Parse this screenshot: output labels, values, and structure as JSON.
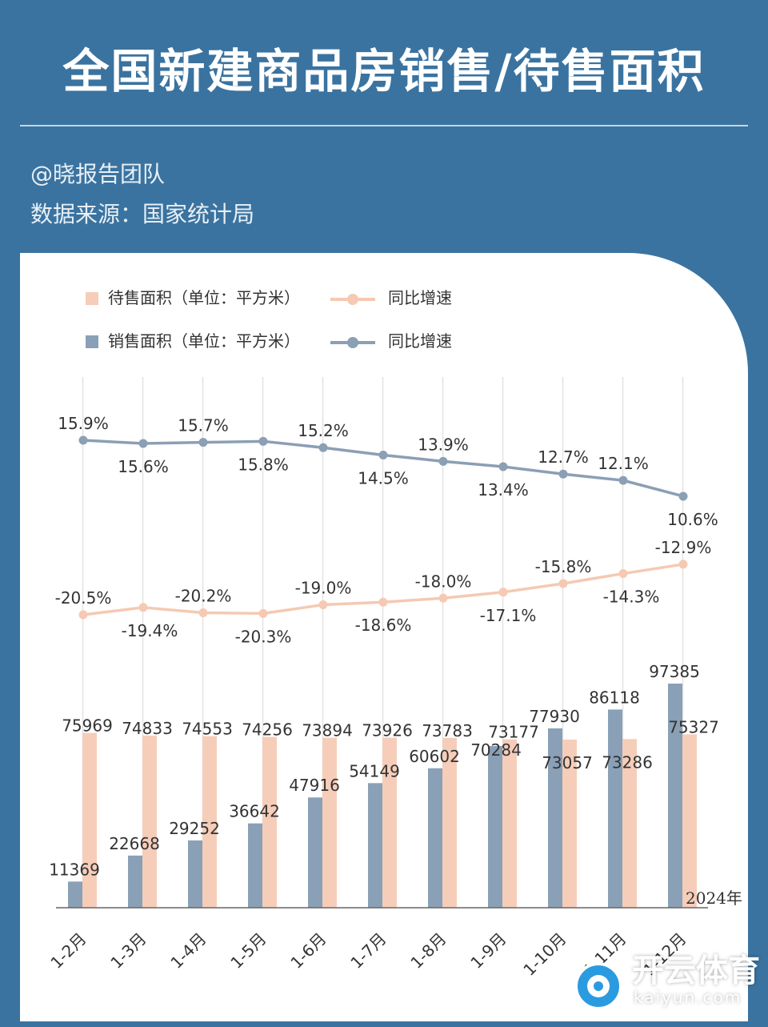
{
  "header": {
    "title": "全国新建商品房销售/待售面积",
    "author": "@晓报告团队",
    "source": "数据来源：国家统计局"
  },
  "watermark": {
    "main": "开云体育",
    "sub": "kaiyun.com"
  },
  "colors": {
    "pending": "#f6cdb9",
    "sales": "#8aa0b6",
    "pending_line": "#f5c9b3",
    "sales_line": "#8b9fb5",
    "background": "#3a73a0"
  },
  "chart_data": {
    "type": "bar+line",
    "year_label": "2024年",
    "categories": [
      "1-2月",
      "1-3月",
      "1-4月",
      "1-5月",
      "1-6月",
      "1-7月",
      "1-8月",
      "1-9月",
      "1-10月",
      "1-11月",
      "1-12月"
    ],
    "legend": [
      {
        "label": "待售面积（单位：平方米）",
        "kind": "bar",
        "series": "pending"
      },
      {
        "label": "同比增速",
        "kind": "line",
        "series": "pending_growth"
      },
      {
        "label": "销售面积（单位：平方米）",
        "kind": "bar",
        "series": "sales"
      },
      {
        "label": "同比增速",
        "kind": "line",
        "series": "sales_growth"
      }
    ],
    "series": {
      "pending": {
        "values": [
          75969,
          74833,
          74553,
          74256,
          73894,
          73926,
          73783,
          73177,
          73057,
          73286,
          75327
        ]
      },
      "sales": {
        "values": [
          11369,
          22668,
          29252,
          36642,
          47916,
          54149,
          60602,
          70284,
          77930,
          86118,
          97385
        ]
      },
      "sales_growth": {
        "values": [
          15.9,
          15.6,
          15.7,
          15.8,
          15.2,
          14.5,
          13.9,
          13.4,
          12.7,
          12.1,
          10.6
        ],
        "labels": [
          "15.9%",
          "15.6%",
          "15.7%",
          "15.8%",
          "15.2%",
          "14.5%",
          "13.9%",
          "13.4%",
          "12.7%",
          "12.1%",
          "10.6%"
        ]
      },
      "pending_growth": {
        "values": [
          -20.5,
          -19.4,
          -20.2,
          -20.3,
          -19.0,
          -18.6,
          -18.0,
          -17.1,
          -15.8,
          -14.3,
          -12.9
        ],
        "labels": [
          "-20.5%",
          "-19.4%",
          "-20.2%",
          "-20.3%",
          "-19.0%",
          "-18.6%",
          "-18.0%",
          "-17.1%",
          "-15.8%",
          "-14.3%",
          "-12.9%"
        ]
      }
    },
    "bar_ylim": [
      0,
      97385
    ]
  }
}
